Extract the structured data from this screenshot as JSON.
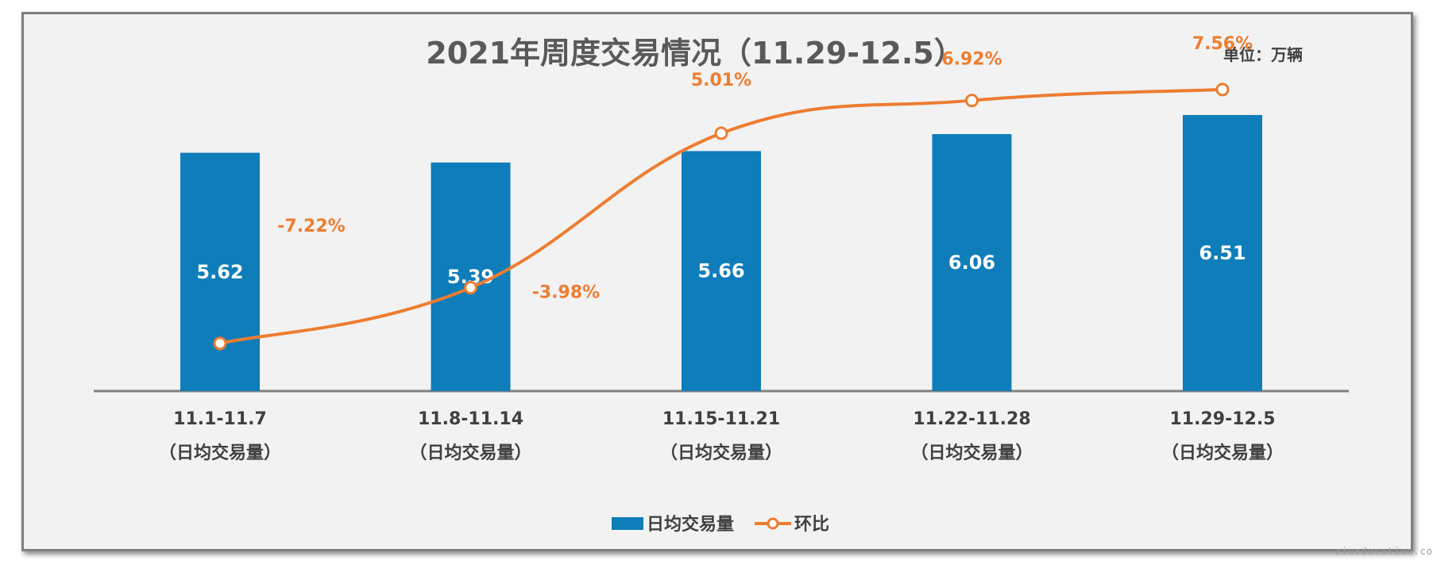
{
  "chart_data": {
    "type": "bar",
    "title": "2021年周度交易情况（11.29-12.5）",
    "unit_label": "单位：万辆",
    "categories": [
      "11.1-11.7",
      "11.8-11.14",
      "11.15-11.21",
      "11.22-11.28",
      "11.29-12.5"
    ],
    "category_sublabel": "（日均交易量）",
    "series": [
      {
        "name": "日均交易量",
        "type": "bar",
        "values": [
          5.62,
          5.39,
          5.66,
          6.06,
          6.51
        ],
        "labels": [
          "5.62",
          "5.39",
          "5.66",
          "6.06",
          "6.51"
        ],
        "color": "#0e7dba"
      },
      {
        "name": "环比",
        "type": "line",
        "values": [
          -7.22,
          -3.98,
          5.01,
          6.92,
          7.56
        ],
        "labels": [
          "-7.22%",
          "-3.98%",
          "5.01%",
          "6.92%",
          "7.56%"
        ],
        "color": "#ed7d31"
      }
    ],
    "bar_ylim": [
      0,
      8.1
    ],
    "line_ylim": [
      -10,
      10
    ],
    "legend_position": "bottom"
  },
  "watermark": "ziueducation.co"
}
